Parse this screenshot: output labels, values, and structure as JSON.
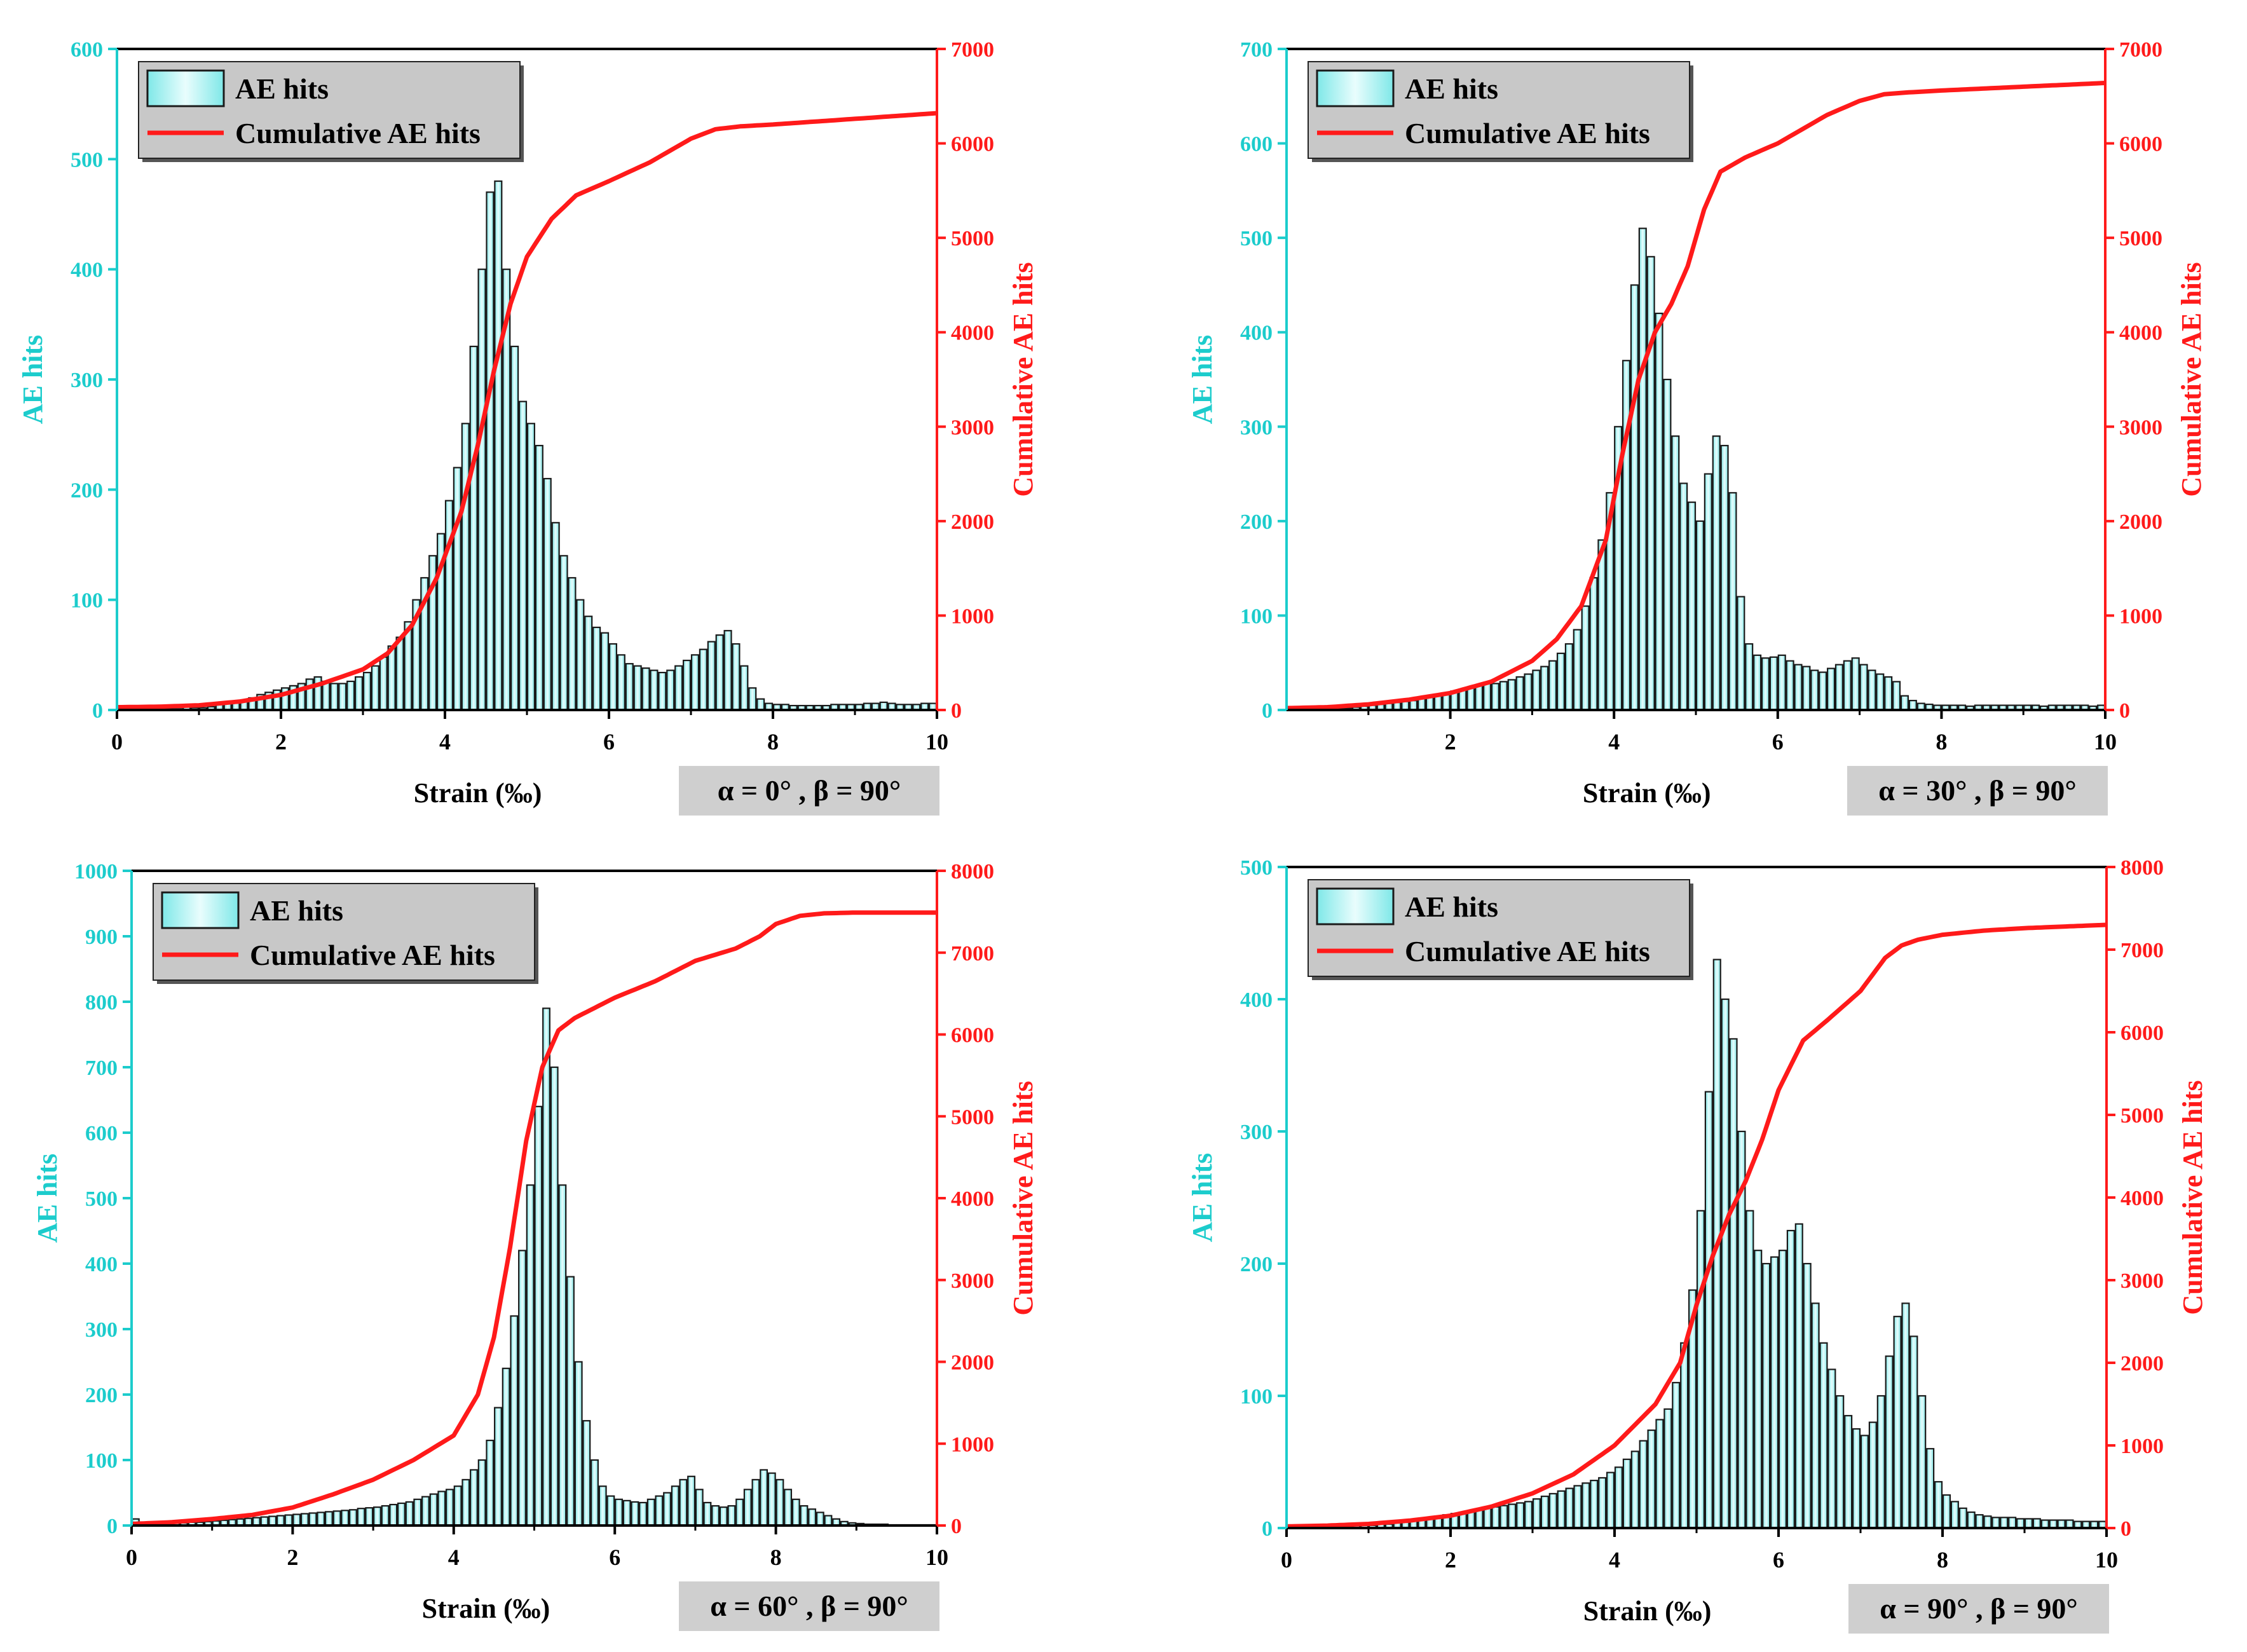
{
  "colors": {
    "bar_fill": "#7fe8e8",
    "bar_fill_light": "#e9fdfd",
    "bar_stroke": "#1a1a1a",
    "left_axis": "#1ccccc",
    "right_axis": "#ff1a1a",
    "cumulative_line": "#ff1a1a",
    "legend_bg": "#c8c8c8",
    "annotation_bg": "#cfcfcf"
  },
  "chart_data": [
    {
      "type": "bar",
      "annotation": "α = 0° , β = 90°",
      "xlabel": "Strain  (‰)",
      "ylabel_left": "AE hits",
      "ylabel_right": "Cumulative AE hits",
      "legend": [
        "AE hits",
        "Cumulative AE hits"
      ],
      "xlim": [
        0,
        10
      ],
      "xticks": [
        0,
        2,
        4,
        6,
        8,
        10
      ],
      "ylim_left": [
        0,
        600
      ],
      "yticks_left": [
        0,
        100,
        200,
        300,
        400,
        500,
        600
      ],
      "ylim_right": [
        0,
        7000
      ],
      "yticks_right": [
        0,
        1000,
        2000,
        3000,
        4000,
        5000,
        6000,
        7000
      ],
      "bin_width": 0.1,
      "bins_start": 0.0,
      "hits": [
        0,
        0,
        0,
        1,
        1,
        1,
        1,
        1,
        5,
        2,
        2,
        3,
        5,
        6,
        7,
        9,
        11,
        14,
        16,
        18,
        20,
        22,
        24,
        28,
        30,
        26,
        24,
        24,
        26,
        30,
        34,
        40,
        48,
        58,
        66,
        80,
        100,
        120,
        140,
        160,
        190,
        220,
        260,
        330,
        400,
        470,
        480,
        400,
        330,
        280,
        260,
        240,
        210,
        170,
        140,
        120,
        100,
        85,
        75,
        70,
        60,
        50,
        42,
        40,
        38,
        36,
        34,
        36,
        40,
        45,
        50,
        55,
        62,
        68,
        72,
        60,
        40,
        20,
        10,
        6,
        5,
        5,
        4,
        4,
        4,
        4,
        4,
        5,
        5,
        5,
        5,
        6,
        6,
        7,
        6,
        5,
        5,
        5,
        6,
        6
      ],
      "cumulative": {
        "x": [
          0,
          0.5,
          1.0,
          1.5,
          2.0,
          2.5,
          3.0,
          3.3,
          3.6,
          3.9,
          4.2,
          4.4,
          4.6,
          4.8,
          5.0,
          5.3,
          5.6,
          6.0,
          6.5,
          6.8,
          7.0,
          7.3,
          7.6,
          8.0,
          8.5,
          9.0,
          9.5,
          10.0
        ],
        "y": [
          30,
          35,
          50,
          90,
          160,
          280,
          430,
          600,
          900,
          1400,
          2100,
          2800,
          3600,
          4300,
          4800,
          5200,
          5450,
          5600,
          5800,
          5950,
          6050,
          6150,
          6180,
          6200,
          6230,
          6260,
          6290,
          6320
        ]
      }
    },
    {
      "type": "bar",
      "annotation": "α = 30° , β = 90°",
      "xlabel": "Strain  (‰)",
      "ylabel_left": "AE hits",
      "ylabel_right": "Cumulative AE hits",
      "legend": [
        "AE hits",
        "Cumulative AE hits"
      ],
      "xlim": [
        0,
        10
      ],
      "xticks": [
        2,
        4,
        6,
        8,
        10
      ],
      "ylim_left": [
        0,
        700
      ],
      "yticks_left": [
        0,
        100,
        200,
        300,
        400,
        500,
        600,
        700
      ],
      "ylim_right": [
        0,
        7000
      ],
      "yticks_right": [
        0,
        1000,
        2000,
        3000,
        4000,
        5000,
        6000,
        7000
      ],
      "bin_width": 0.1,
      "bins_start": 0.0,
      "hits": [
        0,
        0,
        0,
        1,
        1,
        1,
        2,
        2,
        3,
        4,
        5,
        6,
        7,
        8,
        9,
        10,
        12,
        14,
        16,
        18,
        20,
        22,
        24,
        26,
        28,
        28,
        30,
        32,
        35,
        38,
        42,
        46,
        52,
        60,
        70,
        85,
        110,
        140,
        180,
        230,
        300,
        370,
        450,
        510,
        480,
        420,
        350,
        290,
        240,
        220,
        200,
        250,
        290,
        280,
        230,
        120,
        70,
        58,
        55,
        56,
        58,
        52,
        48,
        46,
        42,
        40,
        44,
        48,
        52,
        55,
        48,
        42,
        38,
        35,
        30,
        15,
        10,
        7,
        6,
        5,
        5,
        5,
        5,
        4,
        5,
        5,
        5,
        5,
        5,
        5,
        5,
        5,
        4,
        5,
        5,
        5,
        5,
        5,
        4,
        5
      ],
      "cumulative": {
        "x": [
          0,
          0.5,
          1.0,
          1.5,
          2.0,
          2.5,
          3.0,
          3.3,
          3.6,
          3.9,
          4.1,
          4.3,
          4.5,
          4.7,
          4.9,
          5.1,
          5.3,
          5.6,
          6.0,
          6.3,
          6.6,
          7.0,
          7.3,
          7.6,
          8.0,
          8.5,
          9.0,
          9.5,
          10.0
        ],
        "y": [
          20,
          30,
          60,
          110,
          180,
          300,
          520,
          750,
          1100,
          1800,
          2700,
          3500,
          4000,
          4300,
          4700,
          5300,
          5700,
          5850,
          6000,
          6150,
          6300,
          6450,
          6520,
          6540,
          6560,
          6580,
          6600,
          6620,
          6640
        ]
      }
    },
    {
      "type": "bar",
      "annotation": "α = 60° , β = 90°",
      "xlabel": "Strain  (‰)",
      "ylabel_left": "AE hits",
      "ylabel_right": "Cumulative AE hits",
      "legend": [
        "AE hits",
        "Cumulative AE hits"
      ],
      "xlim": [
        0,
        10
      ],
      "xticks": [
        0,
        2,
        4,
        6,
        8,
        10
      ],
      "ylim_left": [
        0,
        1000
      ],
      "yticks_left": [
        0,
        100,
        200,
        300,
        400,
        500,
        600,
        700,
        800,
        900,
        1000
      ],
      "ylim_right": [
        0,
        8000
      ],
      "yticks_right": [
        0,
        1000,
        2000,
        3000,
        4000,
        5000,
        6000,
        7000,
        8000
      ],
      "bin_width": 0.1,
      "bins_start": 0.0,
      "hits": [
        10,
        5,
        3,
        3,
        3,
        4,
        4,
        5,
        5,
        6,
        7,
        8,
        9,
        10,
        11,
        12,
        13,
        14,
        15,
        16,
        17,
        18,
        19,
        20,
        21,
        22,
        23,
        24,
        26,
        27,
        28,
        30,
        32,
        34,
        36,
        40,
        44,
        48,
        52,
        55,
        60,
        70,
        85,
        100,
        130,
        180,
        240,
        320,
        420,
        520,
        640,
        790,
        700,
        520,
        380,
        250,
        160,
        100,
        60,
        45,
        40,
        38,
        36,
        35,
        40,
        45,
        50,
        60,
        70,
        75,
        55,
        35,
        30,
        28,
        30,
        40,
        55,
        70,
        85,
        80,
        70,
        55,
        40,
        30,
        25,
        20,
        15,
        10,
        6,
        4,
        3,
        2,
        2,
        2,
        1,
        1,
        1,
        1,
        1,
        1
      ],
      "cumulative": {
        "x": [
          0,
          0.5,
          1.0,
          1.5,
          2.0,
          2.5,
          3.0,
          3.5,
          4.0,
          4.3,
          4.5,
          4.7,
          4.9,
          5.1,
          5.3,
          5.5,
          5.8,
          6.0,
          6.5,
          7.0,
          7.5,
          7.8,
          8.0,
          8.3,
          8.6,
          9.0,
          9.5,
          10.0
        ],
        "y": [
          20,
          40,
          80,
          130,
          220,
          380,
          560,
          800,
          1100,
          1600,
          2300,
          3400,
          4700,
          5600,
          6050,
          6200,
          6350,
          6450,
          6650,
          6900,
          7050,
          7200,
          7350,
          7450,
          7480,
          7490,
          7490,
          7490
        ]
      }
    },
    {
      "type": "bar",
      "annotation": "α = 90° , β = 90°",
      "xlabel": "Strain  (‰)",
      "ylabel_left": "AE hits",
      "ylabel_right": "Cumulative AE hits",
      "legend": [
        "AE hits",
        "Cumulative AE hits"
      ],
      "xlim": [
        0,
        10
      ],
      "xticks": [
        0,
        2,
        4,
        6,
        8,
        10
      ],
      "ylim_left": [
        0,
        500
      ],
      "yticks_left": [
        0,
        100,
        200,
        300,
        400,
        500
      ],
      "ylim_right": [
        0,
        8000
      ],
      "yticks_right": [
        0,
        1000,
        2000,
        3000,
        4000,
        5000,
        6000,
        7000,
        8000
      ],
      "bin_width": 0.1,
      "bins_start": 0.0,
      "hits": [
        1,
        1,
        1,
        1,
        1,
        1,
        1,
        1,
        2,
        2,
        2,
        3,
        3,
        4,
        5,
        6,
        7,
        8,
        9,
        10,
        11,
        12,
        13,
        14,
        15,
        16,
        17,
        18,
        19,
        20,
        22,
        24,
        26,
        28,
        30,
        32,
        34,
        36,
        38,
        42,
        46,
        52,
        58,
        66,
        74,
        82,
        90,
        110,
        140,
        180,
        240,
        330,
        430,
        400,
        370,
        300,
        240,
        210,
        200,
        205,
        210,
        225,
        230,
        200,
        170,
        140,
        120,
        100,
        85,
        75,
        70,
        80,
        100,
        130,
        160,
        170,
        145,
        100,
        60,
        35,
        25,
        20,
        15,
        12,
        10,
        9,
        8,
        8,
        8,
        7,
        7,
        7,
        6,
        6,
        6,
        6,
        5,
        5,
        5,
        5
      ],
      "cumulative": {
        "x": [
          0,
          0.5,
          1.0,
          1.5,
          2.0,
          2.5,
          3.0,
          3.5,
          4.0,
          4.5,
          4.8,
          5.0,
          5.2,
          5.4,
          5.6,
          5.8,
          6.0,
          6.3,
          6.6,
          7.0,
          7.3,
          7.5,
          7.7,
          8.0,
          8.5,
          9.0,
          9.5,
          10.0
        ],
        "y": [
          20,
          30,
          50,
          90,
          150,
          260,
          420,
          650,
          1000,
          1500,
          2000,
          2700,
          3300,
          3800,
          4200,
          4700,
          5300,
          5900,
          6150,
          6500,
          6900,
          7050,
          7120,
          7180,
          7230,
          7260,
          7280,
          7300
        ]
      }
    }
  ]
}
